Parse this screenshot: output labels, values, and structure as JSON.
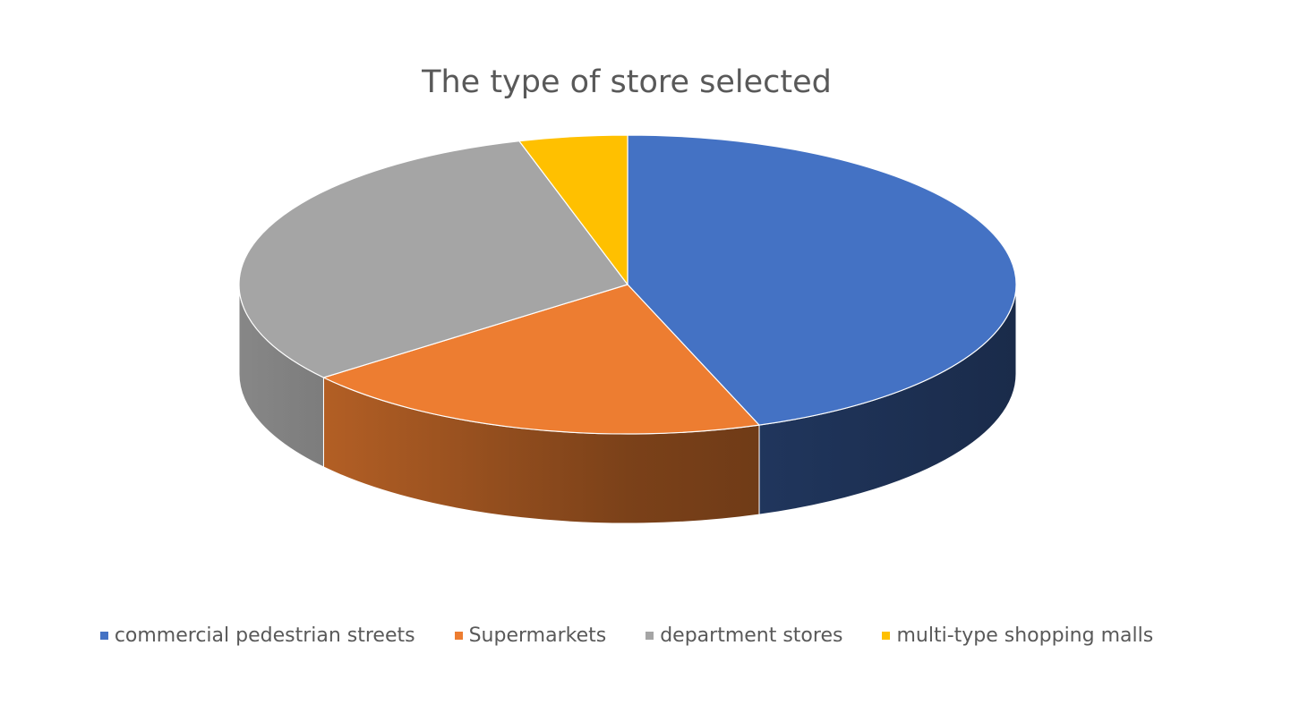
{
  "chart_data": {
    "type": "pie",
    "title": "The type of store selected",
    "categories": [
      "commercial pedestrian streets",
      "Supermarkets",
      "department stores",
      "multi-type shopping malls"
    ],
    "values": [
      44.5,
      19.8,
      31.2,
      4.5
    ],
    "colors": [
      "#4472c4",
      "#ed7d31",
      "#a5a5a5",
      "#ffc000"
    ],
    "style": "3d-pie",
    "legend_position": "bottom",
    "data_labels": false
  }
}
